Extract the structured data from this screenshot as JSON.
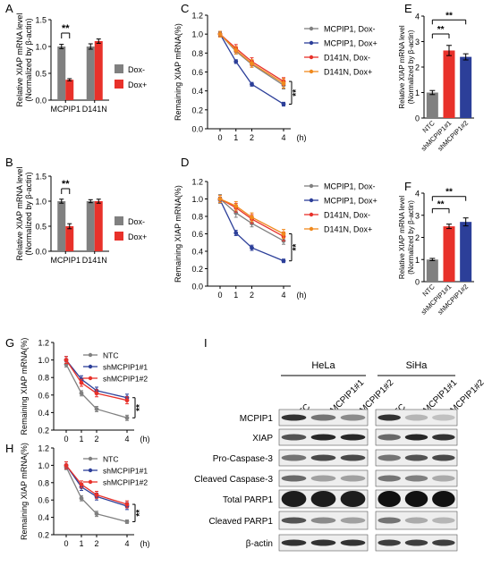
{
  "colors": {
    "gray": "#808080",
    "red": "#e8312a",
    "blue": "#2c3f99",
    "orange": "#f08a1e",
    "dark": "#222222",
    "blot_bg": "#eeeeee"
  },
  "chart_data": [
    {
      "panel": "A",
      "type": "bar",
      "ylabel_lines": [
        "Relative XIAP mRNA level",
        "(Normalized by β-actin)"
      ],
      "categories": [
        "MCPIP1",
        "D141N"
      ],
      "series": [
        {
          "name": "Dox-",
          "values": [
            1.0,
            1.0
          ],
          "errors": [
            0.04,
            0.05
          ]
        },
        {
          "name": "Dox+",
          "values": [
            0.38,
            1.1
          ],
          "errors": [
            0.02,
            0.04
          ]
        }
      ],
      "ylim": [
        0,
        1.5
      ],
      "yticks": [
        "0.0",
        "0.5",
        "1.0",
        "1.5"
      ],
      "significance": [
        "**"
      ]
    },
    {
      "panel": "B",
      "type": "bar",
      "ylabel_lines": [
        "Relative XIAP mRNA level",
        "(Normalized by β-actin)"
      ],
      "categories": [
        "MCPIP1",
        "D141N"
      ],
      "series": [
        {
          "name": "Dox-",
          "values": [
            1.0,
            1.0
          ],
          "errors": [
            0.04,
            0.03
          ]
        },
        {
          "name": "Dox+",
          "values": [
            0.5,
            1.0
          ],
          "errors": [
            0.05,
            0.04
          ]
        }
      ],
      "ylim": [
        0,
        1.5
      ],
      "yticks": [
        "0.0",
        "0.5",
        "1.0",
        "1.5"
      ],
      "significance": [
        "**"
      ]
    },
    {
      "panel": "C",
      "type": "line",
      "ylabel": "Remaining XIAP mRNA(%)",
      "xunit": "(h)",
      "x": [
        0,
        1,
        2,
        4
      ],
      "xticks": [
        "0",
        "1",
        "2",
        "4"
      ],
      "ylim": [
        0,
        1.2
      ],
      "yticks": [
        "0.0",
        "0.2",
        "0.4",
        "0.6",
        "0.8",
        "1.0",
        "1.2"
      ],
      "series": [
        {
          "name": "MCPIP1, Dox-",
          "values": [
            1.0,
            0.82,
            0.68,
            0.46
          ],
          "errors": [
            0.03,
            0.03,
            0.03,
            0.04
          ]
        },
        {
          "name": "MCPIP1, Dox+",
          "values": [
            1.0,
            0.71,
            0.47,
            0.26
          ],
          "errors": [
            0.02,
            0.02,
            0.02,
            0.02
          ]
        },
        {
          "name": "D141N, Dox-",
          "values": [
            1.0,
            0.85,
            0.71,
            0.5
          ],
          "errors": [
            0.03,
            0.04,
            0.04,
            0.04
          ]
        },
        {
          "name": "D141N, Dox+",
          "values": [
            1.0,
            0.83,
            0.69,
            0.48
          ],
          "errors": [
            0.03,
            0.04,
            0.04,
            0.05
          ]
        }
      ],
      "significance": [
        "**"
      ]
    },
    {
      "panel": "D",
      "type": "line",
      "ylabel": "Remaining XIAP mRNA(%)",
      "xunit": "(h)",
      "x": [
        0,
        1,
        2,
        4
      ],
      "xticks": [
        "0",
        "1",
        "2",
        "4"
      ],
      "ylim": [
        0,
        1.2
      ],
      "yticks": [
        "0.0",
        "0.2",
        "0.4",
        "0.6",
        "0.8",
        "1.0",
        "1.2"
      ],
      "series": [
        {
          "name": "MCPIP1, Dox-",
          "values": [
            1.0,
            0.84,
            0.72,
            0.52
          ],
          "errors": [
            0.05,
            0.05,
            0.04,
            0.04
          ]
        },
        {
          "name": "MCPIP1, Dox+",
          "values": [
            0.99,
            0.61,
            0.44,
            0.29
          ],
          "errors": [
            0.03,
            0.03,
            0.03,
            0.02
          ]
        },
        {
          "name": "D141N, Dox-",
          "values": [
            1.0,
            0.9,
            0.77,
            0.57
          ],
          "errors": [
            0.04,
            0.05,
            0.05,
            0.05
          ]
        },
        {
          "name": "D141N, Dox+",
          "values": [
            1.0,
            0.92,
            0.79,
            0.6
          ],
          "errors": [
            0.04,
            0.05,
            0.05,
            0.05
          ]
        }
      ],
      "significance": [
        "**"
      ]
    },
    {
      "panel": "E",
      "type": "bar",
      "ylabel_lines": [
        "Relative XIAP mRNA level",
        "(Normalized by β-actin)"
      ],
      "categories": [
        "NTC",
        "shMCPIP1#1",
        "shMCPIP1#2"
      ],
      "values": [
        1.0,
        2.65,
        2.4
      ],
      "errors": [
        0.08,
        0.2,
        0.12
      ],
      "ylim": [
        0,
        4
      ],
      "yticks": [
        "0",
        "1",
        "2",
        "3",
        "4"
      ],
      "significance": [
        "**",
        "**"
      ]
    },
    {
      "panel": "F",
      "type": "bar",
      "ylabel_lines": [
        "Relative XIAP mRNA level",
        "(Normalized by β-actin)"
      ],
      "categories": [
        "NTC",
        "shMCPIP1#1",
        "shMCPIP1#2"
      ],
      "values": [
        1.0,
        2.5,
        2.7
      ],
      "errors": [
        0.05,
        0.1,
        0.18
      ],
      "ylim": [
        0,
        4
      ],
      "yticks": [
        "0",
        "1",
        "2",
        "3",
        "4"
      ],
      "significance": [
        "**",
        "**"
      ]
    },
    {
      "panel": "G",
      "type": "line",
      "ylabel": "Remaining XIAP mRNA(%)",
      "xunit": "(h)",
      "x": [
        0,
        1,
        2,
        4
      ],
      "xticks": [
        "0",
        "1",
        "2",
        "4"
      ],
      "ylim": [
        0.2,
        1.2
      ],
      "yticks": [
        "0.2",
        "0.4",
        "0.6",
        "0.8",
        "1.0",
        "1.2"
      ],
      "series": [
        {
          "name": "NTC",
          "values": [
            0.95,
            0.62,
            0.44,
            0.34
          ],
          "errors": [
            0.03,
            0.03,
            0.03,
            0.03
          ]
        },
        {
          "name": "shMCPIP1#1",
          "values": [
            1.0,
            0.78,
            0.65,
            0.57
          ],
          "errors": [
            0.04,
            0.04,
            0.04,
            0.04
          ]
        },
        {
          "name": "shMCPIP1#2",
          "values": [
            1.0,
            0.74,
            0.62,
            0.54
          ],
          "errors": [
            0.04,
            0.04,
            0.04,
            0.04
          ]
        }
      ],
      "significance": [
        "**"
      ]
    },
    {
      "panel": "H",
      "type": "line",
      "ylabel": "Remaining XIAP mRNA(%)",
      "xunit": "(h)",
      "x": [
        0,
        1,
        2,
        4
      ],
      "xticks": [
        "0",
        "1",
        "2",
        "4"
      ],
      "ylim": [
        0.2,
        1.2
      ],
      "yticks": [
        "0.2",
        "0.4",
        "0.6",
        "0.8",
        "1.0",
        "1.2"
      ],
      "series": [
        {
          "name": "NTC",
          "values": [
            0.98,
            0.62,
            0.44,
            0.35
          ],
          "errors": [
            0.03,
            0.03,
            0.03,
            0.02
          ]
        },
        {
          "name": "shMCPIP1#1",
          "values": [
            1.0,
            0.75,
            0.64,
            0.53
          ],
          "errors": [
            0.04,
            0.04,
            0.04,
            0.04
          ]
        },
        {
          "name": "shMCPIP1#2",
          "values": [
            1.0,
            0.78,
            0.66,
            0.55
          ],
          "errors": [
            0.04,
            0.04,
            0.04,
            0.04
          ]
        }
      ],
      "significance": [
        "**"
      ]
    }
  ],
  "blot": {
    "panel": "I",
    "cell_lines": [
      "HeLa",
      "SiHa"
    ],
    "lanes": [
      "NTC",
      "shMCPIP1#1",
      "shMCPIP1#2"
    ],
    "rows": [
      "MCPIP1",
      "XIAP",
      "Pro-Caspase-3",
      "Cleaved Caspase-3",
      "Total PARP1",
      "Cleaved PARP1",
      "β-actin"
    ]
  }
}
